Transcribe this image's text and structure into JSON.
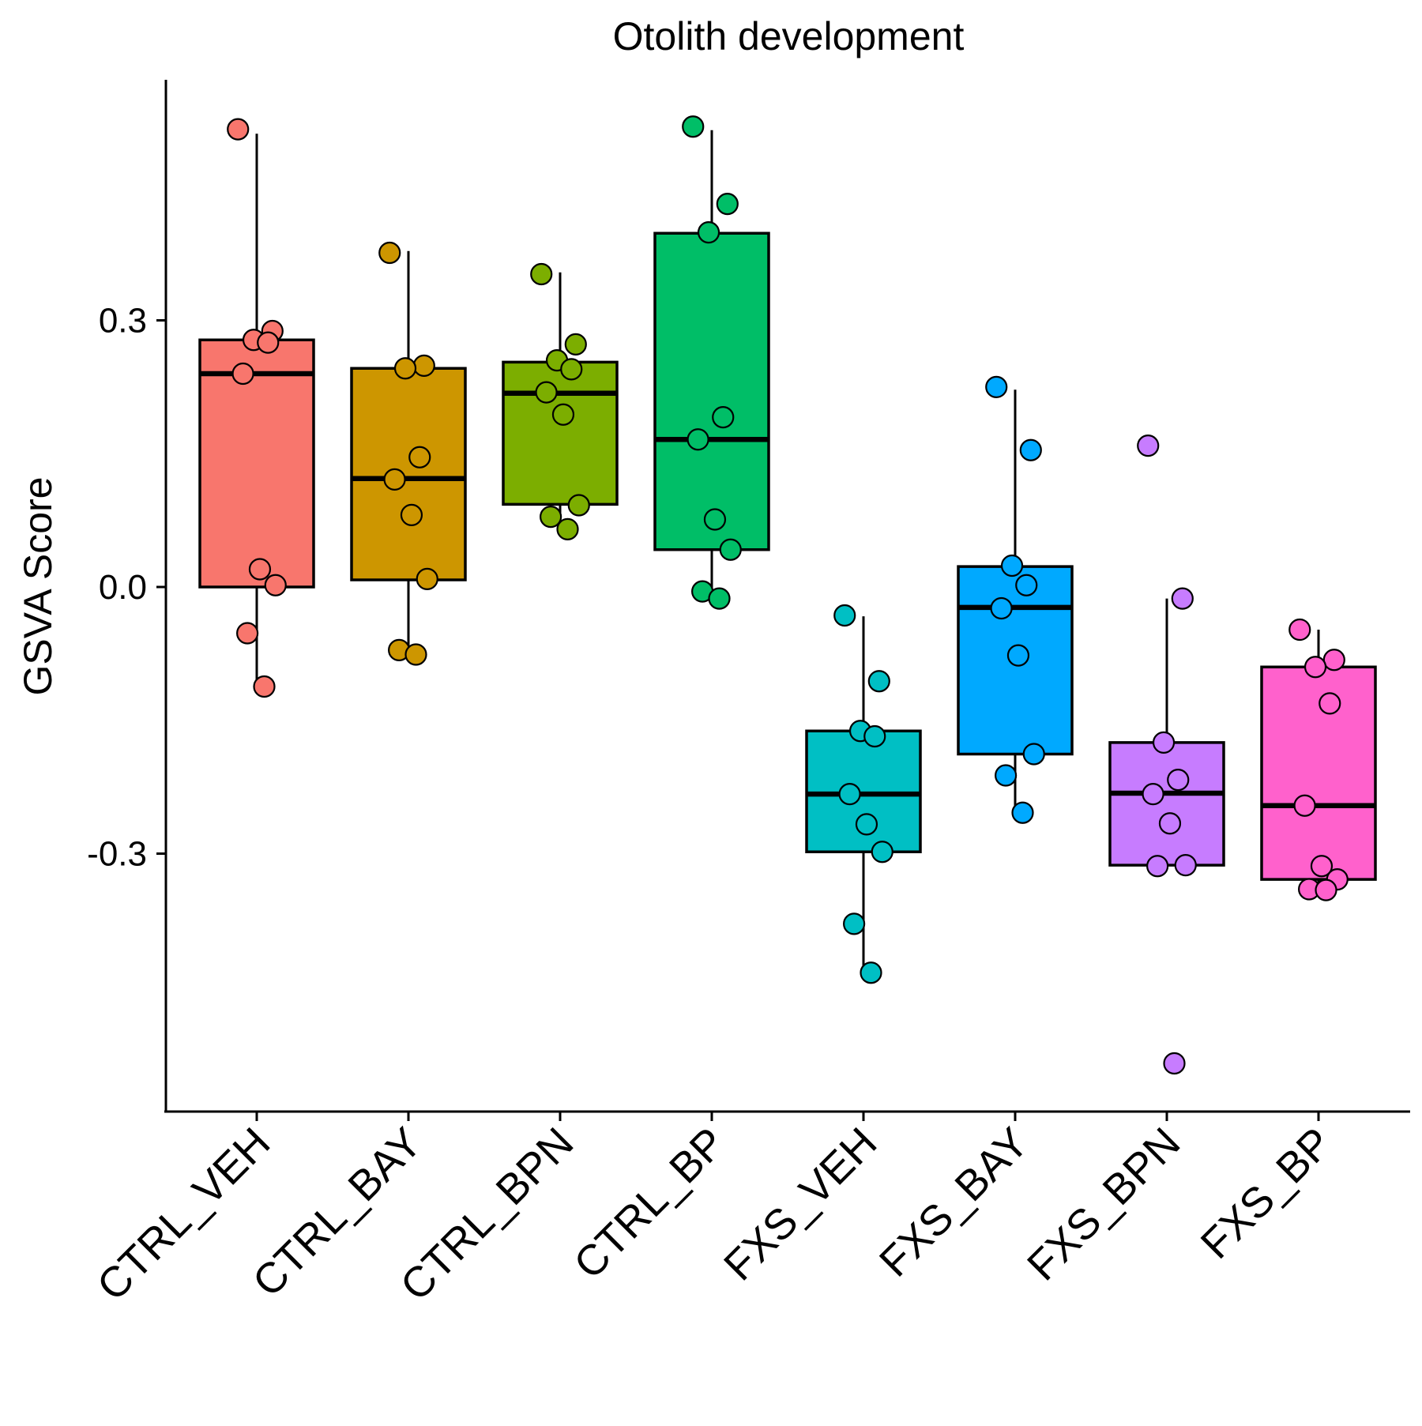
{
  "chart_data": {
    "type": "box",
    "title": "Otolith development",
    "xlabel": "",
    "ylabel": "GSVA Score",
    "ylim": [
      -0.6,
      0.57
    ],
    "yticks": [
      0.3,
      0.0,
      -0.3
    ],
    "ytick_labels": [
      "0.3",
      "0.0",
      "-0.3"
    ],
    "grid": false,
    "legend": "none",
    "categories": [
      "CTRL_VEH",
      "CTRL_BAY",
      "CTRL_BPN",
      "CTRL_BP",
      "FXS_VEH",
      "FXS_BAY",
      "FXS_BPN",
      "FXS_BP"
    ],
    "colors": [
      "#F8766D",
      "#CD9600",
      "#7CAE00",
      "#00BE67",
      "#00BFC4",
      "#00A9FF",
      "#C77CFF",
      "#FF61CC"
    ],
    "boxes": [
      {
        "group": "CTRL_VEH",
        "whisker_low": -0.112,
        "q1": 0.0,
        "median": 0.24,
        "q3": 0.278,
        "whisker_high": 0.51
      },
      {
        "group": "CTRL_BAY",
        "whisker_low": -0.077,
        "q1": 0.008,
        "median": 0.122,
        "q3": 0.246,
        "whisker_high": 0.378
      },
      {
        "group": "CTRL_BPN",
        "whisker_low": 0.063,
        "q1": 0.093,
        "median": 0.218,
        "q3": 0.253,
        "whisker_high": 0.354
      },
      {
        "group": "CTRL_BP",
        "whisker_low": -0.012,
        "q1": 0.042,
        "median": 0.166,
        "q3": 0.398,
        "whisker_high": 0.514
      },
      {
        "group": "FXS_VEH",
        "whisker_low": -0.437,
        "q1": -0.298,
        "median": -0.233,
        "q3": -0.162,
        "whisker_high": -0.033
      },
      {
        "group": "FXS_BAY",
        "whisker_low": -0.254,
        "q1": -0.188,
        "median": -0.023,
        "q3": 0.023,
        "whisker_high": 0.222
      },
      {
        "group": "FXS_BPN",
        "whisker_low": -0.313,
        "q1": -0.313,
        "median": -0.232,
        "q3": -0.175,
        "whisker_high": -0.013
      },
      {
        "group": "FXS_BP",
        "whisker_low": -0.34,
        "q1": -0.329,
        "median": -0.246,
        "q3": -0.09,
        "whisker_high": -0.048
      }
    ],
    "points": [
      {
        "group": "CTRL_VEH",
        "values": [
          0.515,
          0.288,
          0.278,
          0.275,
          0.24,
          0.02,
          0.002,
          -0.052,
          -0.112
        ]
      },
      {
        "group": "CTRL_BAY",
        "values": [
          0.376,
          0.249,
          0.246,
          0.146,
          0.121,
          0.081,
          0.009,
          -0.071,
          -0.076
        ]
      },
      {
        "group": "CTRL_BPN",
        "values": [
          0.352,
          0.273,
          0.255,
          0.245,
          0.219,
          0.194,
          0.092,
          0.079,
          0.065
        ]
      },
      {
        "group": "CTRL_BP",
        "values": [
          0.518,
          0.431,
          0.399,
          0.191,
          0.166,
          0.076,
          0.042,
          -0.005,
          -0.013
        ]
      },
      {
        "group": "FXS_VEH",
        "values": [
          -0.032,
          -0.106,
          -0.162,
          -0.168,
          -0.233,
          -0.267,
          -0.298,
          -0.379,
          -0.434
        ]
      },
      {
        "group": "FXS_BAY",
        "values": [
          0.225,
          0.154,
          0.024,
          0.002,
          -0.024,
          -0.077,
          -0.188,
          -0.212,
          -0.254
        ]
      },
      {
        "group": "FXS_BPN",
        "values": [
          0.159,
          -0.013,
          -0.175,
          -0.217,
          -0.233,
          -0.266,
          -0.313,
          -0.314,
          -0.536
        ]
      },
      {
        "group": "FXS_BP",
        "values": [
          -0.048,
          -0.082,
          -0.09,
          -0.131,
          -0.246,
          -0.314,
          -0.329,
          -0.34,
          -0.341
        ]
      }
    ]
  }
}
